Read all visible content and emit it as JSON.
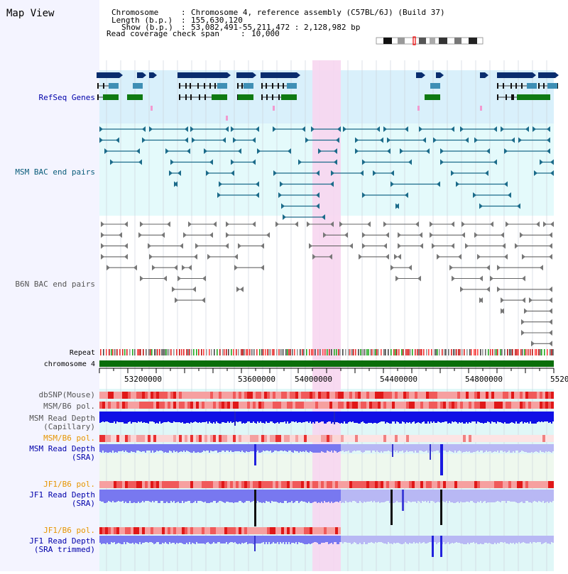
{
  "view": {
    "title": "Map View",
    "info": {
      "chromosome_label": "Chromosome",
      "chromosome_value": "Chromosome 4, reference assembly (C57BL/6J) (Build 37)",
      "length_label": "Length (b.p.)",
      "length_value": "155,630,120",
      "show_label": "Show (b.p.)",
      "show_value": "53,082,491-55,211,472 : 2,128,982 bp",
      "coverage_label": "Read coverage check span",
      "coverage_value": "10,000"
    }
  },
  "tracks": {
    "refseq": "RefSeq Genes",
    "msm_bac": "MSM BAC end pairs",
    "b6n_bac": "B6N BAC end pairs",
    "repeat": "Repeat",
    "chromosome": "chromosome 4",
    "dbsnp": "dbSNP(Mouse)",
    "msm_b6_pol": "MSM/B6 pol.",
    "msm_depth_cap_1": "MSM Read Depth",
    "msm_depth_cap_2": "(Capillary)",
    "msm_b6_pol2": "MSM/B6 pol.",
    "msm_depth_sra_1": "MSM Read Depth",
    "msm_depth_sra_2": "(SRA)",
    "jf1_b6_pol": "JF1/B6 pol.",
    "jf1_depth_sra_1": "JF1 Read Depth",
    "jf1_depth_sra_2": "(SRA)",
    "jf1_b6_pol2": "JF1/B6 pol.",
    "jf1_depth_trim_1": "JF1 Read Depth",
    "jf1_depth_trim_2": "(SRA trimmed)"
  },
  "axis": {
    "ticks": [
      "53200000",
      "53600000",
      "54000000",
      "54400000",
      "54800000",
      "5520"
    ]
  },
  "colors": {
    "refseq_dark": "#0a2d6e",
    "refseq_mid": "#3f8fb5",
    "refseq_green": "#0f7a12",
    "msm_teal": "#1b6b8a",
    "b6n_gray": "#666666",
    "highlight_pink": "#f7d6ef",
    "chromosome_green": "#0a6e0a",
    "depth_blue": "#1010e6",
    "depth_light": "#7878f0",
    "orange_label": "#e69500",
    "blue_label": "#0000aa"
  }
}
